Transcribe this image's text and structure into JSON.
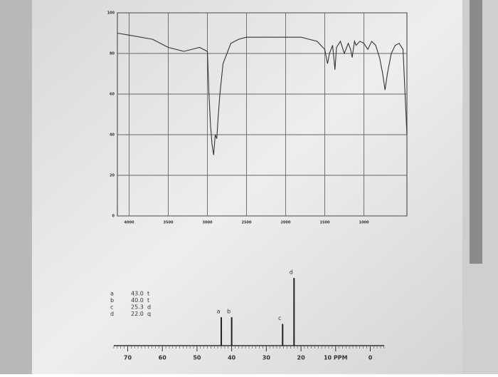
{
  "chart_data": [
    {
      "type": "line",
      "x": [
        4150,
        4000,
        3700,
        3500,
        3300,
        3100,
        3000,
        2980,
        2960,
        2940,
        2920,
        2900,
        2880,
        2860,
        2840,
        2800,
        2700,
        2600,
        2500,
        2300,
        2000,
        1800,
        1700,
        1600,
        1500,
        1465,
        1440,
        1400,
        1385,
        1370,
        1350,
        1300,
        1250,
        1200,
        1170,
        1150,
        1120,
        1100,
        1050,
        1000,
        950,
        900,
        850,
        800,
        760,
        730,
        700,
        650,
        600,
        550,
        500,
        450
      ],
      "values": [
        90,
        89,
        87,
        83,
        81,
        83,
        81,
        60,
        45,
        35,
        30,
        40,
        38,
        50,
        60,
        75,
        85,
        87,
        88,
        88,
        88,
        88,
        87,
        86,
        82,
        75,
        80,
        84,
        78,
        72,
        83,
        86,
        80,
        85,
        82,
        78,
        86,
        84,
        86,
        85,
        82,
        86,
        84,
        78,
        70,
        62,
        70,
        80,
        84,
        85,
        82,
        40
      ],
      "color": "#333333",
      "xlim": [
        4150,
        450
      ],
      "ylim": [
        0,
        100
      ],
      "xticks": [
        4000,
        3500,
        3000,
        2500,
        2000,
        1500,
        1000
      ],
      "yticks": [
        0,
        20,
        40,
        60,
        80,
        100
      ],
      "grid": true
    },
    {
      "type": "stem",
      "x": [
        43.0,
        40.0,
        25.3,
        22.0
      ],
      "values": [
        42,
        42,
        32,
        100
      ],
      "labels": [
        "a",
        "b",
        "c",
        "d"
      ],
      "color": "#222222",
      "xlim": [
        74,
        -4
      ],
      "ylim": [
        0,
        100
      ],
      "xticks": [
        70,
        60,
        50,
        40,
        30,
        20,
        {
          "value": 10,
          "label": "10 PPM"
        },
        0
      ],
      "table": [
        [
          "a",
          "43.0",
          "t"
        ],
        [
          "b",
          "40.0",
          "t"
        ],
        [
          "c",
          "25.3",
          "d"
        ],
        [
          "d",
          "22.0",
          "q"
        ]
      ]
    }
  ]
}
